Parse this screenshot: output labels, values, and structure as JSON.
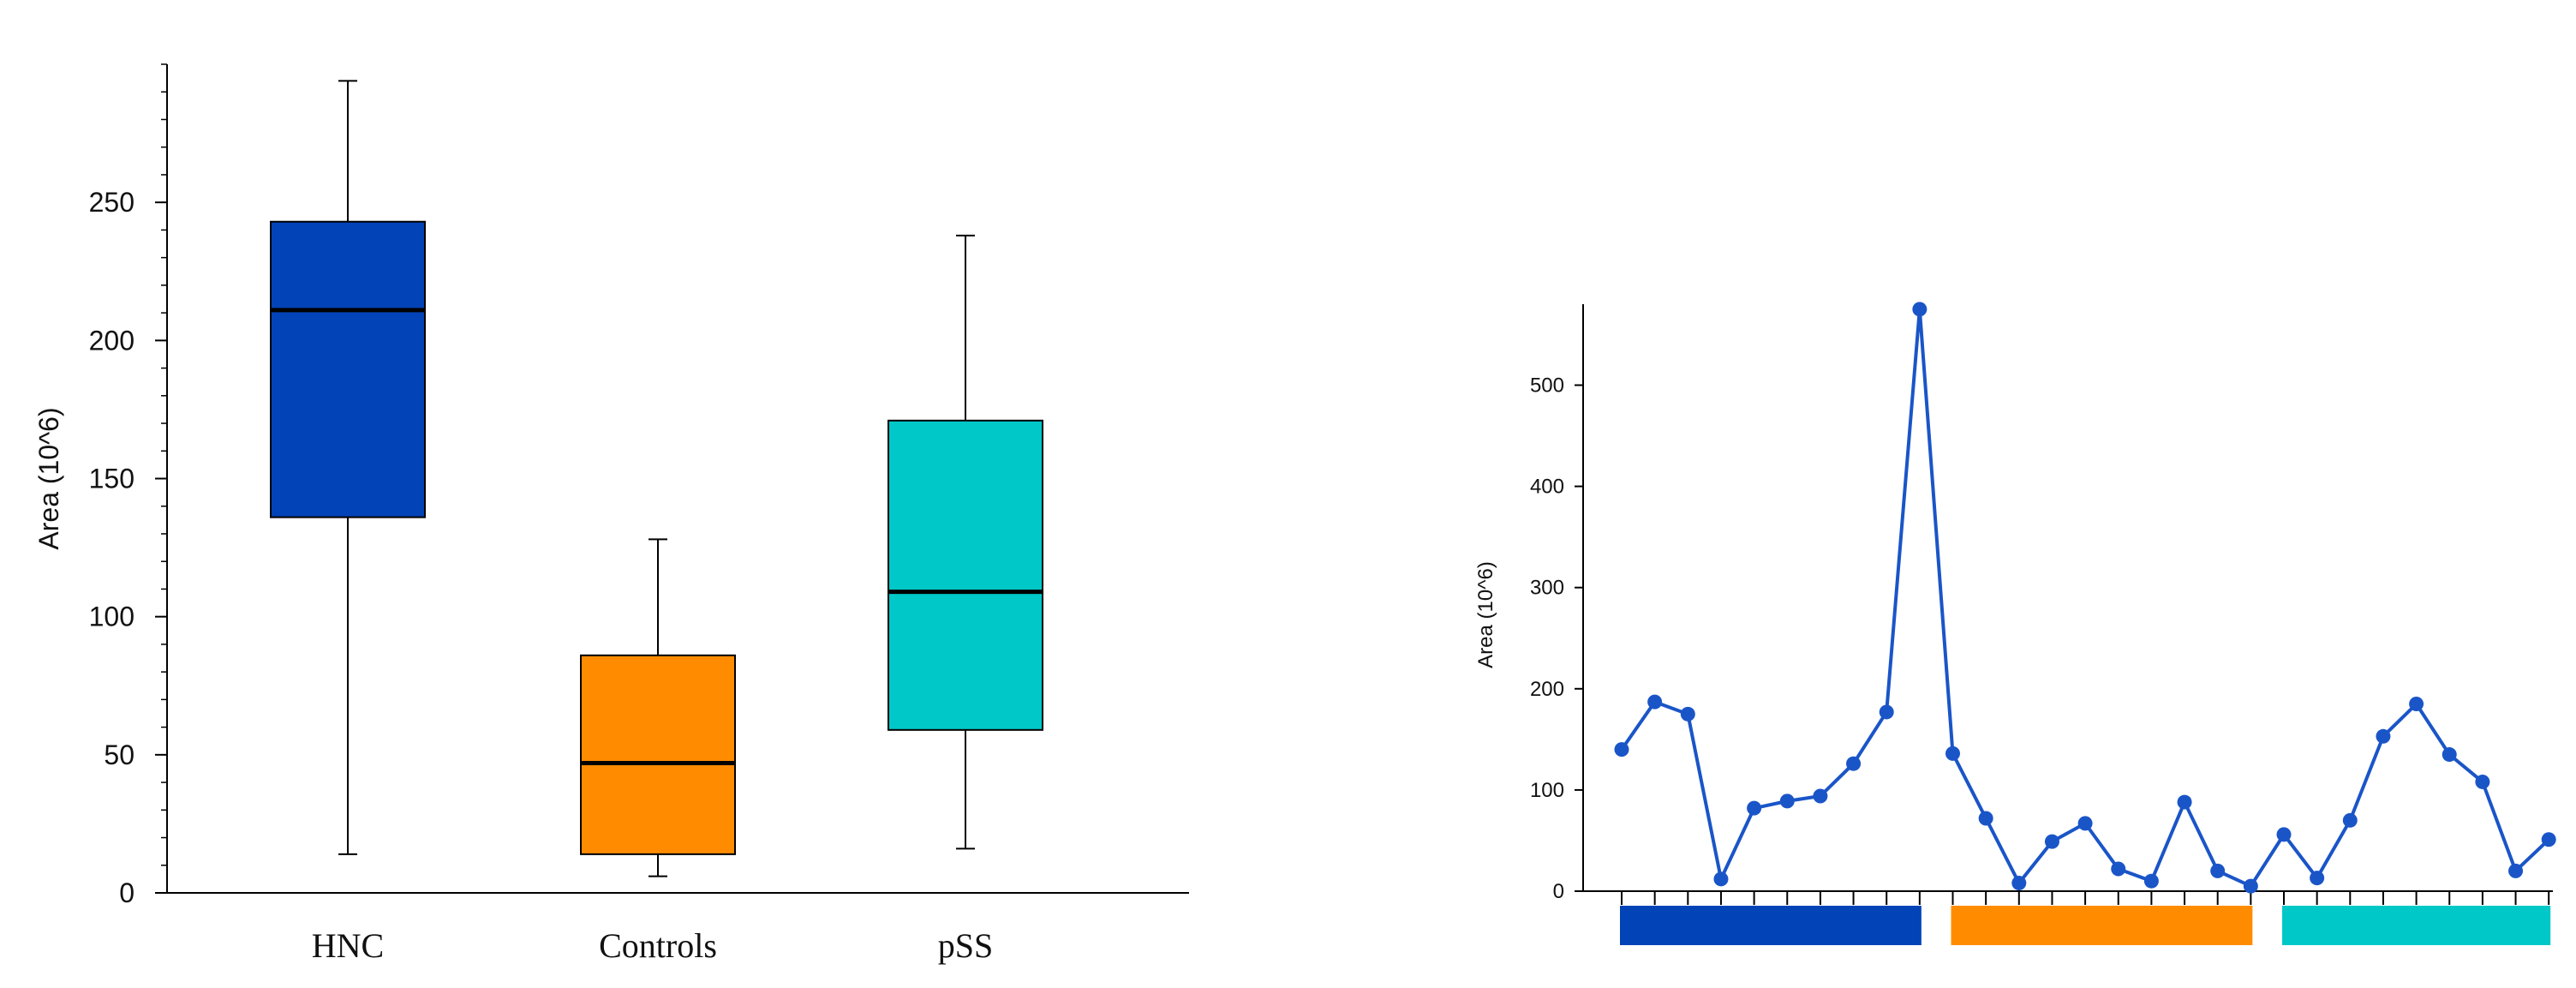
{
  "colors": {
    "hnc": "#0343b8",
    "controls": "#ff8c00",
    "pss": "#00c8c8",
    "line": "#1a55c8",
    "axis": "#000000"
  },
  "chart_data": [
    {
      "type": "box",
      "ylabel": "Area (10^6)",
      "ylim": [
        0,
        300
      ],
      "yticks": [
        0,
        50,
        100,
        150,
        200,
        250
      ],
      "minor_tick_step": 10,
      "grid": false,
      "categories": [
        "HNC",
        "Controls",
        "pSS"
      ],
      "boxes": [
        {
          "name": "HNC",
          "color": "#0343b8",
          "min": 14,
          "q1": 136,
          "median": 211,
          "q3": 243,
          "max": 294
        },
        {
          "name": "Controls",
          "color": "#ff8c00",
          "min": 6,
          "q1": 14,
          "median": 47,
          "q3": 86,
          "max": 128
        },
        {
          "name": "pSS",
          "color": "#00c8c8",
          "min": 16,
          "q1": 59,
          "median": 109,
          "q3": 171,
          "max": 238
        }
      ]
    },
    {
      "type": "line",
      "ylabel": "Area (10^6)",
      "ylim": [
        0,
        580
      ],
      "yticks": [
        0,
        100,
        200,
        300,
        400,
        500
      ],
      "grid": false,
      "x": [
        1,
        2,
        3,
        4,
        5,
        6,
        7,
        8,
        9,
        10,
        11,
        12,
        13,
        14,
        15,
        16,
        17,
        18,
        19,
        20,
        21,
        22,
        23,
        24,
        25,
        26,
        27,
        28,
        29
      ],
      "values": [
        140,
        187,
        175,
        12,
        82,
        89,
        94,
        126,
        177,
        575,
        136,
        72,
        8,
        49,
        67,
        22,
        10,
        88,
        20,
        5,
        56,
        13,
        70,
        153,
        185,
        135,
        108,
        20,
        51
      ],
      "group_bars": [
        {
          "name": "HNC",
          "color": "#0343b8",
          "from": 1,
          "to": 10
        },
        {
          "name": "Controls",
          "color": "#ff8c00",
          "from": 11,
          "to": 20
        },
        {
          "name": "pSS",
          "color": "#00c8c8",
          "from": 21,
          "to": 29
        }
      ]
    }
  ]
}
